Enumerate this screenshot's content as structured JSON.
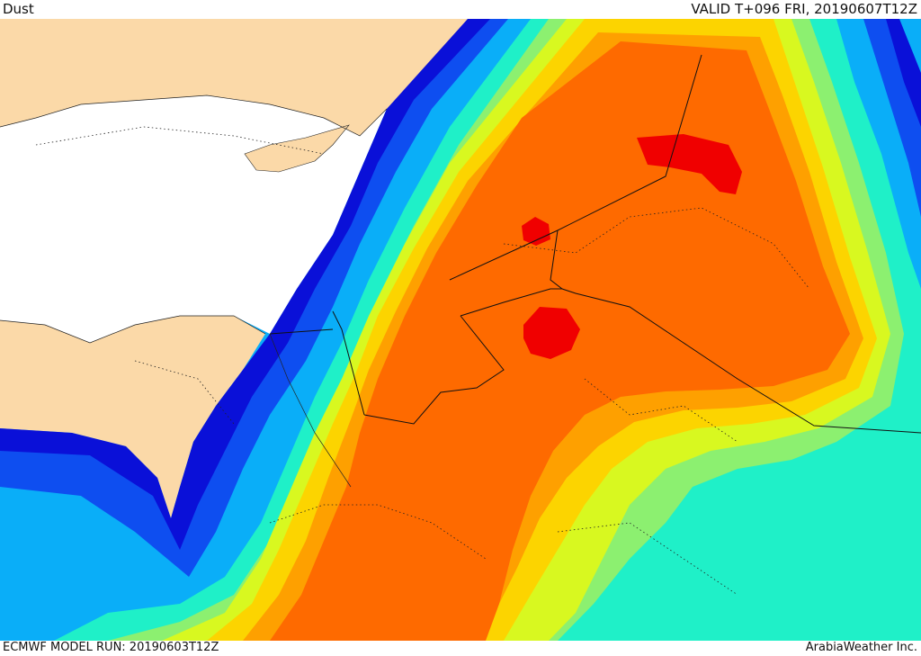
{
  "header": {
    "product": "Dust",
    "valid_time": "VALID T+096 FRI, 20190607T12Z"
  },
  "footer": {
    "model_run": "ECMWF MODEL RUN: 20190603T12Z",
    "credit": "ArabiaWeather Inc."
  },
  "colors": {
    "land": "#fbd9a8",
    "sea_white": "#ffffff",
    "dust_levels": [
      "#0a10d8",
      "#0e4ef0",
      "#0aaef8",
      "#1ff0c8",
      "#8cf070",
      "#d8f820",
      "#fcd400",
      "#fea000",
      "#fe6a00",
      "#f00000"
    ],
    "border_line": "#111111"
  }
}
